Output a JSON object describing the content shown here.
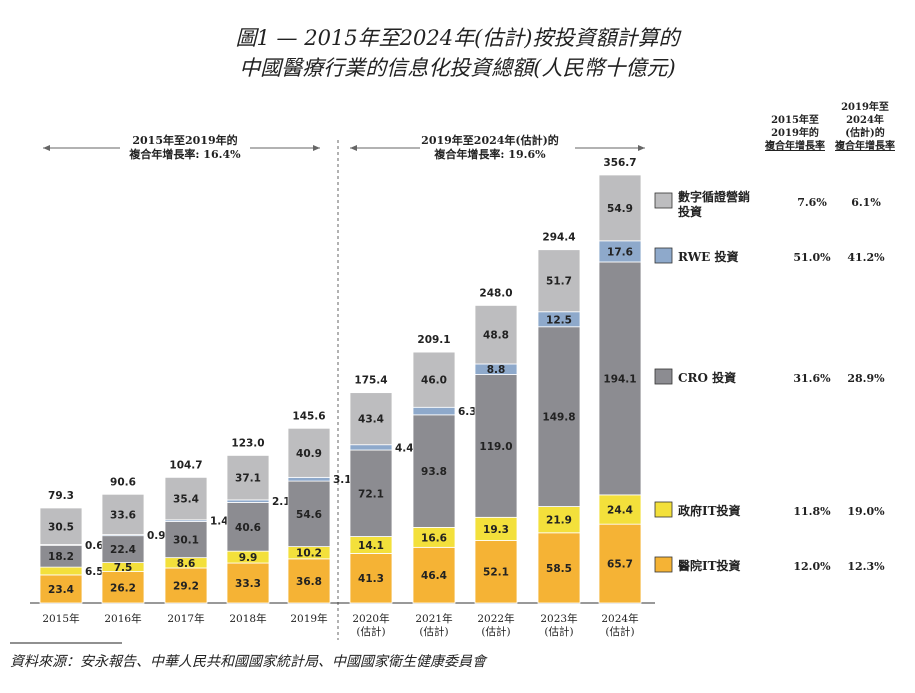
{
  "title_line1": "圖1 — 2015年至2024年(估計)按投資額計算的",
  "title_line2": "中國醫療行業的信息化投資總額(人民幣十億元)",
  "cagr_left": [
    "2015年至2019年的",
    "複合年增長率: 16.4%"
  ],
  "cagr_right": [
    "2019年至2024年(估計)的",
    "複合年增長率: 19.6%"
  ],
  "legend_header_1": [
    "2015年至",
    "2019年的",
    "複合年增長率"
  ],
  "legend_header_2": [
    "2019年至",
    "2024年",
    "(估計)的",
    "複合年增長率"
  ],
  "source": "資料來源：安永報告、中華人民共和國國家統計局、中國國家衛生健康委員會",
  "chart_data": {
    "type": "bar",
    "stacked": true,
    "categories": [
      "2015年",
      "2016年",
      "2017年",
      "2018年",
      "2019年",
      "2020年\n(估計)",
      "2021年\n(估計)",
      "2022年\n(估計)",
      "2023年\n(估計)",
      "2024年\n(估計)"
    ],
    "totals": [
      79.3,
      90.6,
      104.7,
      123.0,
      145.6,
      175.4,
      209.1,
      248.0,
      294.4,
      356.7
    ],
    "series": [
      {
        "name": "醫院IT投資",
        "color": "#F5B335",
        "values": [
          23.4,
          26.2,
          29.2,
          33.3,
          36.8,
          41.3,
          46.4,
          52.1,
          58.5,
          65.7
        ],
        "cagr_2015_2019": "12.0%",
        "cagr_2019_2024": "12.3%"
      },
      {
        "name": "政府IT投資",
        "color": "#F3E03B",
        "values": [
          6.5,
          7.5,
          8.6,
          9.9,
          10.2,
          14.1,
          16.6,
          19.3,
          21.9,
          24.4
        ],
        "cagr_2015_2019": "11.8%",
        "cagr_2019_2024": "19.0%"
      },
      {
        "name": "CRO 投資",
        "color": "#8C8C91",
        "values": [
          18.2,
          22.4,
          30.1,
          40.6,
          54.6,
          72.1,
          93.8,
          119.0,
          149.8,
          194.1
        ],
        "cagr_2015_2019": "31.6%",
        "cagr_2019_2024": "28.9%"
      },
      {
        "name": "RWE 投資",
        "color": "#8EA9CB",
        "values": [
          0.6,
          0.9,
          1.4,
          2.1,
          3.1,
          4.4,
          6.3,
          8.8,
          12.5,
          17.6
        ],
        "cagr_2015_2019": "51.0%",
        "cagr_2019_2024": "41.2%"
      },
      {
        "name": "數字循證營銷投資",
        "color": "#BDBDBF",
        "values": [
          30.5,
          33.6,
          35.4,
          37.1,
          40.9,
          43.4,
          46.0,
          48.8,
          51.7,
          54.9
        ],
        "cagr_2015_2019": "7.6%",
        "cagr_2019_2024": "6.1%"
      }
    ]
  }
}
